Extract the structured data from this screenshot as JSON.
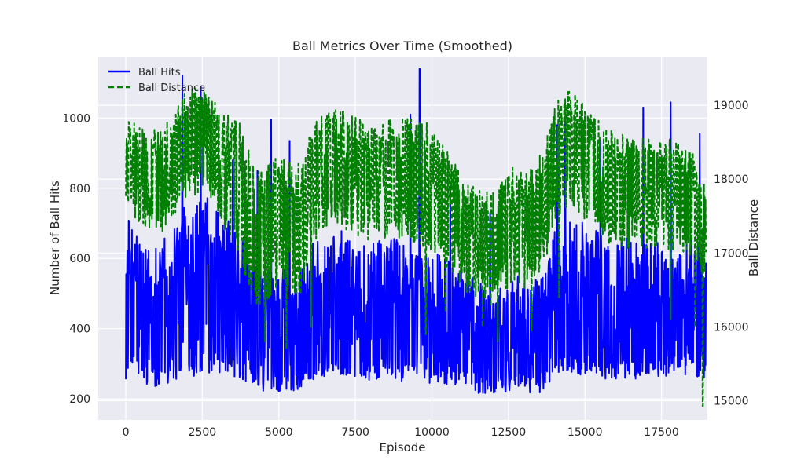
{
  "chart_data": {
    "type": "line",
    "title": "Ball Metrics Over Time (Smoothed)",
    "xlabel": "Episode",
    "ylabel_left": "Number of Ball Hits",
    "ylabel_right": "Ball Distance",
    "xlim": [
      -900,
      19000
    ],
    "ylim_left": [
      140,
      1175
    ],
    "ylim_right": [
      14740,
      19660
    ],
    "x_ticks": [
      0,
      2500,
      5000,
      7500,
      10000,
      12500,
      15000,
      17500
    ],
    "x_tick_labels": [
      "0",
      "2500",
      "5000",
      "7500",
      "10000",
      "12500",
      "15000",
      "17500"
    ],
    "y_left_ticks": [
      200,
      400,
      600,
      800,
      1000
    ],
    "y_left_tick_labels": [
      "200",
      "400",
      "600",
      "800",
      "1000"
    ],
    "y_right_ticks": [
      15000,
      16000,
      17000,
      18000,
      19000
    ],
    "y_right_tick_labels": [
      "15000",
      "16000",
      "17000",
      "18000",
      "19000"
    ],
    "grid": true,
    "legend_position": "top-left",
    "series": [
      {
        "name": "Ball Hits",
        "axis": "left",
        "color": "#0000ff",
        "style": "solid",
        "x": [
          0,
          250,
          500,
          750,
          1000,
          1250,
          1500,
          1750,
          2000,
          2250,
          2500,
          2750,
          3000,
          3250,
          3500,
          3750,
          4000,
          4250,
          4500,
          4750,
          5000,
          5250,
          5500,
          5750,
          6000,
          6250,
          6500,
          6750,
          7000,
          7250,
          7500,
          7750,
          8000,
          8250,
          8500,
          8750,
          9000,
          9250,
          9500,
          9750,
          10000,
          10250,
          10500,
          10750,
          11000,
          11250,
          11500,
          11750,
          12000,
          12250,
          12500,
          12750,
          13000,
          13250,
          13500,
          13750,
          14000,
          14250,
          14500,
          14750,
          15000,
          15250,
          15500,
          15750,
          16000,
          16250,
          16500,
          16750,
          17000,
          17250,
          17500,
          17750,
          18000,
          18250,
          18500,
          18750,
          18950
        ],
        "low": [
          255,
          250,
          245,
          240,
          235,
          240,
          245,
          250,
          260,
          265,
          270,
          270,
          265,
          260,
          255,
          250,
          240,
          225,
          215,
          220,
          215,
          225,
          220,
          230,
          250,
          255,
          260,
          265,
          270,
          265,
          260,
          255,
          250,
          255,
          255,
          260,
          250,
          245,
          240,
          240,
          240,
          245,
          240,
          235,
          225,
          230,
          215,
          210,
          195,
          215,
          220,
          230,
          215,
          215,
          215,
          235,
          250,
          260,
          270,
          270,
          265,
          265,
          255,
          250,
          255,
          255,
          260,
          255,
          265,
          265,
          260,
          265,
          270,
          265,
          270,
          260,
          250
        ],
        "mid": [
          380,
          385,
          375,
          370,
          365,
          370,
          375,
          385,
          395,
          400,
          405,
          400,
          395,
          390,
          385,
          380,
          365,
          345,
          330,
          335,
          330,
          340,
          335,
          350,
          375,
          380,
          385,
          390,
          395,
          390,
          385,
          380,
          375,
          380,
          380,
          385,
          375,
          370,
          365,
          365,
          365,
          370,
          365,
          360,
          345,
          350,
          330,
          325,
          305,
          330,
          335,
          345,
          330,
          330,
          330,
          355,
          375,
          385,
          395,
          395,
          390,
          390,
          380,
          375,
          380,
          380,
          385,
          380,
          390,
          390,
          385,
          390,
          395,
          390,
          395,
          385,
          370
        ],
        "high": [
          730,
          690,
          650,
          630,
          640,
          660,
          690,
          720,
          760,
          780,
          790,
          770,
          740,
          720,
          700,
          690,
          640,
          580,
          560,
          580,
          570,
          580,
          560,
          580,
          640,
          650,
          660,
          670,
          680,
          670,
          660,
          650,
          640,
          650,
          650,
          660,
          640,
          630,
          620,
          610,
          610,
          620,
          600,
          580,
          560,
          570,
          540,
          520,
          480,
          520,
          540,
          560,
          540,
          540,
          540,
          580,
          680,
          700,
          720,
          720,
          700,
          690,
          670,
          660,
          660,
          660,
          670,
          660,
          670,
          660,
          650,
          660,
          670,
          660,
          660,
          640,
          610
        ],
        "peaks": [
          [
            1850,
            1120
          ],
          [
            2450,
            1090
          ],
          [
            3500,
            880
          ],
          [
            4300,
            850
          ],
          [
            4750,
            995
          ],
          [
            5350,
            935
          ],
          [
            9600,
            1140
          ],
          [
            9300,
            1010
          ],
          [
            10600,
            805
          ],
          [
            11900,
            730
          ],
          [
            14100,
            980
          ],
          [
            14350,
            1000
          ],
          [
            15500,
            935
          ],
          [
            16900,
            1030
          ],
          [
            17800,
            1045
          ],
          [
            18750,
            955
          ]
        ]
      },
      {
        "name": "Ball Distance",
        "axis": "right",
        "color": "#008000",
        "style": "dashed",
        "x": [
          0,
          250,
          500,
          750,
          1000,
          1250,
          1500,
          1750,
          2000,
          2250,
          2500,
          2750,
          3000,
          3250,
          3500,
          3750,
          4000,
          4250,
          4500,
          4750,
          5000,
          5250,
          5500,
          5750,
          6000,
          6250,
          6500,
          6750,
          7000,
          7250,
          7500,
          7750,
          8000,
          8250,
          8500,
          8750,
          9000,
          9250,
          9500,
          9750,
          10000,
          10250,
          10500,
          10750,
          11000,
          11250,
          11500,
          11750,
          12000,
          12250,
          12500,
          12750,
          13000,
          13250,
          13500,
          13750,
          14000,
          14250,
          14500,
          14750,
          15000,
          15250,
          15500,
          15750,
          16000,
          16250,
          16500,
          16750,
          17000,
          17250,
          17500,
          17750,
          18000,
          18250,
          18500,
          18750,
          18950
        ],
        "low": [
          17450,
          17500,
          17400,
          17300,
          17250,
          17300,
          17450,
          17600,
          17700,
          17750,
          17800,
          17700,
          17500,
          17300,
          17000,
          16900,
          16500,
          16200,
          16300,
          16350,
          16400,
          16450,
          16350,
          16400,
          17100,
          17200,
          17300,
          17350,
          17300,
          17250,
          17200,
          17150,
          17100,
          17050,
          17150,
          17200,
          17150,
          17150,
          17100,
          17050,
          17000,
          16900,
          16800,
          16650,
          16500,
          16400,
          16350,
          16300,
          16250,
          16350,
          16550,
          16650,
          16500,
          16600,
          16700,
          16950,
          17400,
          17550,
          17600,
          17550,
          17450,
          17350,
          17200,
          17100,
          17100,
          17050,
          17050,
          17050,
          17050,
          17050,
          17050,
          17050,
          17000,
          17000,
          16950,
          16700,
          16600
        ],
        "mid": [
          18200,
          18150,
          18050,
          17950,
          17900,
          17950,
          18150,
          18350,
          18500,
          18550,
          18600,
          18500,
          18350,
          18150,
          17900,
          17800,
          17400,
          17100,
          17200,
          17250,
          17300,
          17350,
          17250,
          17300,
          18000,
          18100,
          18200,
          18250,
          18200,
          18150,
          18100,
          18050,
          18000,
          17950,
          18050,
          18100,
          18050,
          18050,
          18000,
          17950,
          17900,
          17800,
          17700,
          17550,
          17400,
          17300,
          17250,
          17200,
          17150,
          17250,
          17450,
          17550,
          17400,
          17500,
          17600,
          17850,
          18300,
          18450,
          18500,
          18450,
          18350,
          18250,
          18100,
          18000,
          18000,
          17950,
          17950,
          17950,
          17950,
          17950,
          17950,
          17950,
          17900,
          17900,
          17850,
          17600,
          17500
        ],
        "high": [
          18850,
          18800,
          18700,
          18650,
          18700,
          18750,
          18950,
          19100,
          19200,
          19250,
          19250,
          19150,
          19000,
          18950,
          18850,
          18750,
          18500,
          18100,
          18150,
          18250,
          18300,
          18300,
          18200,
          18250,
          18700,
          18800,
          18900,
          18950,
          18950,
          18900,
          18850,
          18800,
          18750,
          18700,
          18800,
          18900,
          18850,
          18900,
          18900,
          18800,
          18700,
          18500,
          18400,
          18250,
          18050,
          17950,
          17900,
          17900,
          17850,
          17950,
          18100,
          18250,
          18100,
          18200,
          18300,
          18600,
          19050,
          19150,
          19200,
          19150,
          19000,
          18950,
          18750,
          18700,
          18650,
          18600,
          18600,
          18600,
          18550,
          18550,
          18550,
          18550,
          18500,
          18450,
          18400,
          18050,
          17900
        ],
        "dips": [
          [
            4550,
            15800
          ],
          [
            5250,
            15700
          ],
          [
            6050,
            16000
          ],
          [
            9800,
            15900
          ],
          [
            10450,
            16200
          ],
          [
            11650,
            16000
          ],
          [
            12150,
            15800
          ],
          [
            13250,
            15950
          ],
          [
            14150,
            16400
          ],
          [
            17800,
            16100
          ],
          [
            18600,
            16000
          ],
          [
            18850,
            14930
          ]
        ]
      }
    ]
  }
}
